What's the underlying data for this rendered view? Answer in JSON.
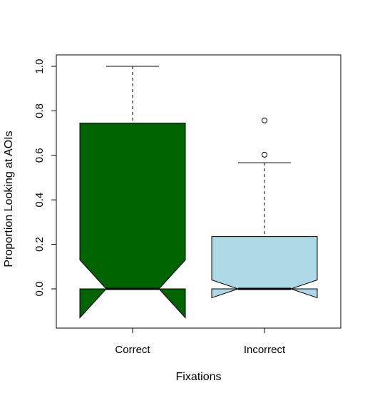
{
  "chart_data": {
    "type": "boxplot",
    "title": "",
    "xlabel": "Fixations",
    "ylabel": "Proportion Looking at AOIs",
    "categories": [
      "Correct",
      "Incorrect"
    ],
    "ylim": [
      -0.17,
      1.05
    ],
    "yticks": [
      0.0,
      0.2,
      0.4,
      0.6,
      0.8,
      1.0
    ],
    "ytick_labels": [
      "0.0",
      "0.2",
      "0.4",
      "0.6",
      "0.8",
      "1.0"
    ],
    "notched": true,
    "grid": false,
    "legend": "none",
    "boxes": [
      {
        "category": "Correct",
        "color": "#006400",
        "whisker_low": 0.0,
        "q1": 0.0,
        "median": 0.0,
        "q3": 0.745,
        "whisker_high": 1.0,
        "notch_low": -0.13,
        "notch_high": 0.13,
        "outliers": []
      },
      {
        "category": "Incorrect",
        "color": "#ADD8E6",
        "whisker_low": 0.0,
        "q1": 0.0,
        "median": 0.0,
        "q3": 0.235,
        "whisker_high": 0.567,
        "notch_low": -0.04,
        "notch_high": 0.04,
        "outliers": [
          0.603,
          0.757
        ]
      }
    ]
  }
}
